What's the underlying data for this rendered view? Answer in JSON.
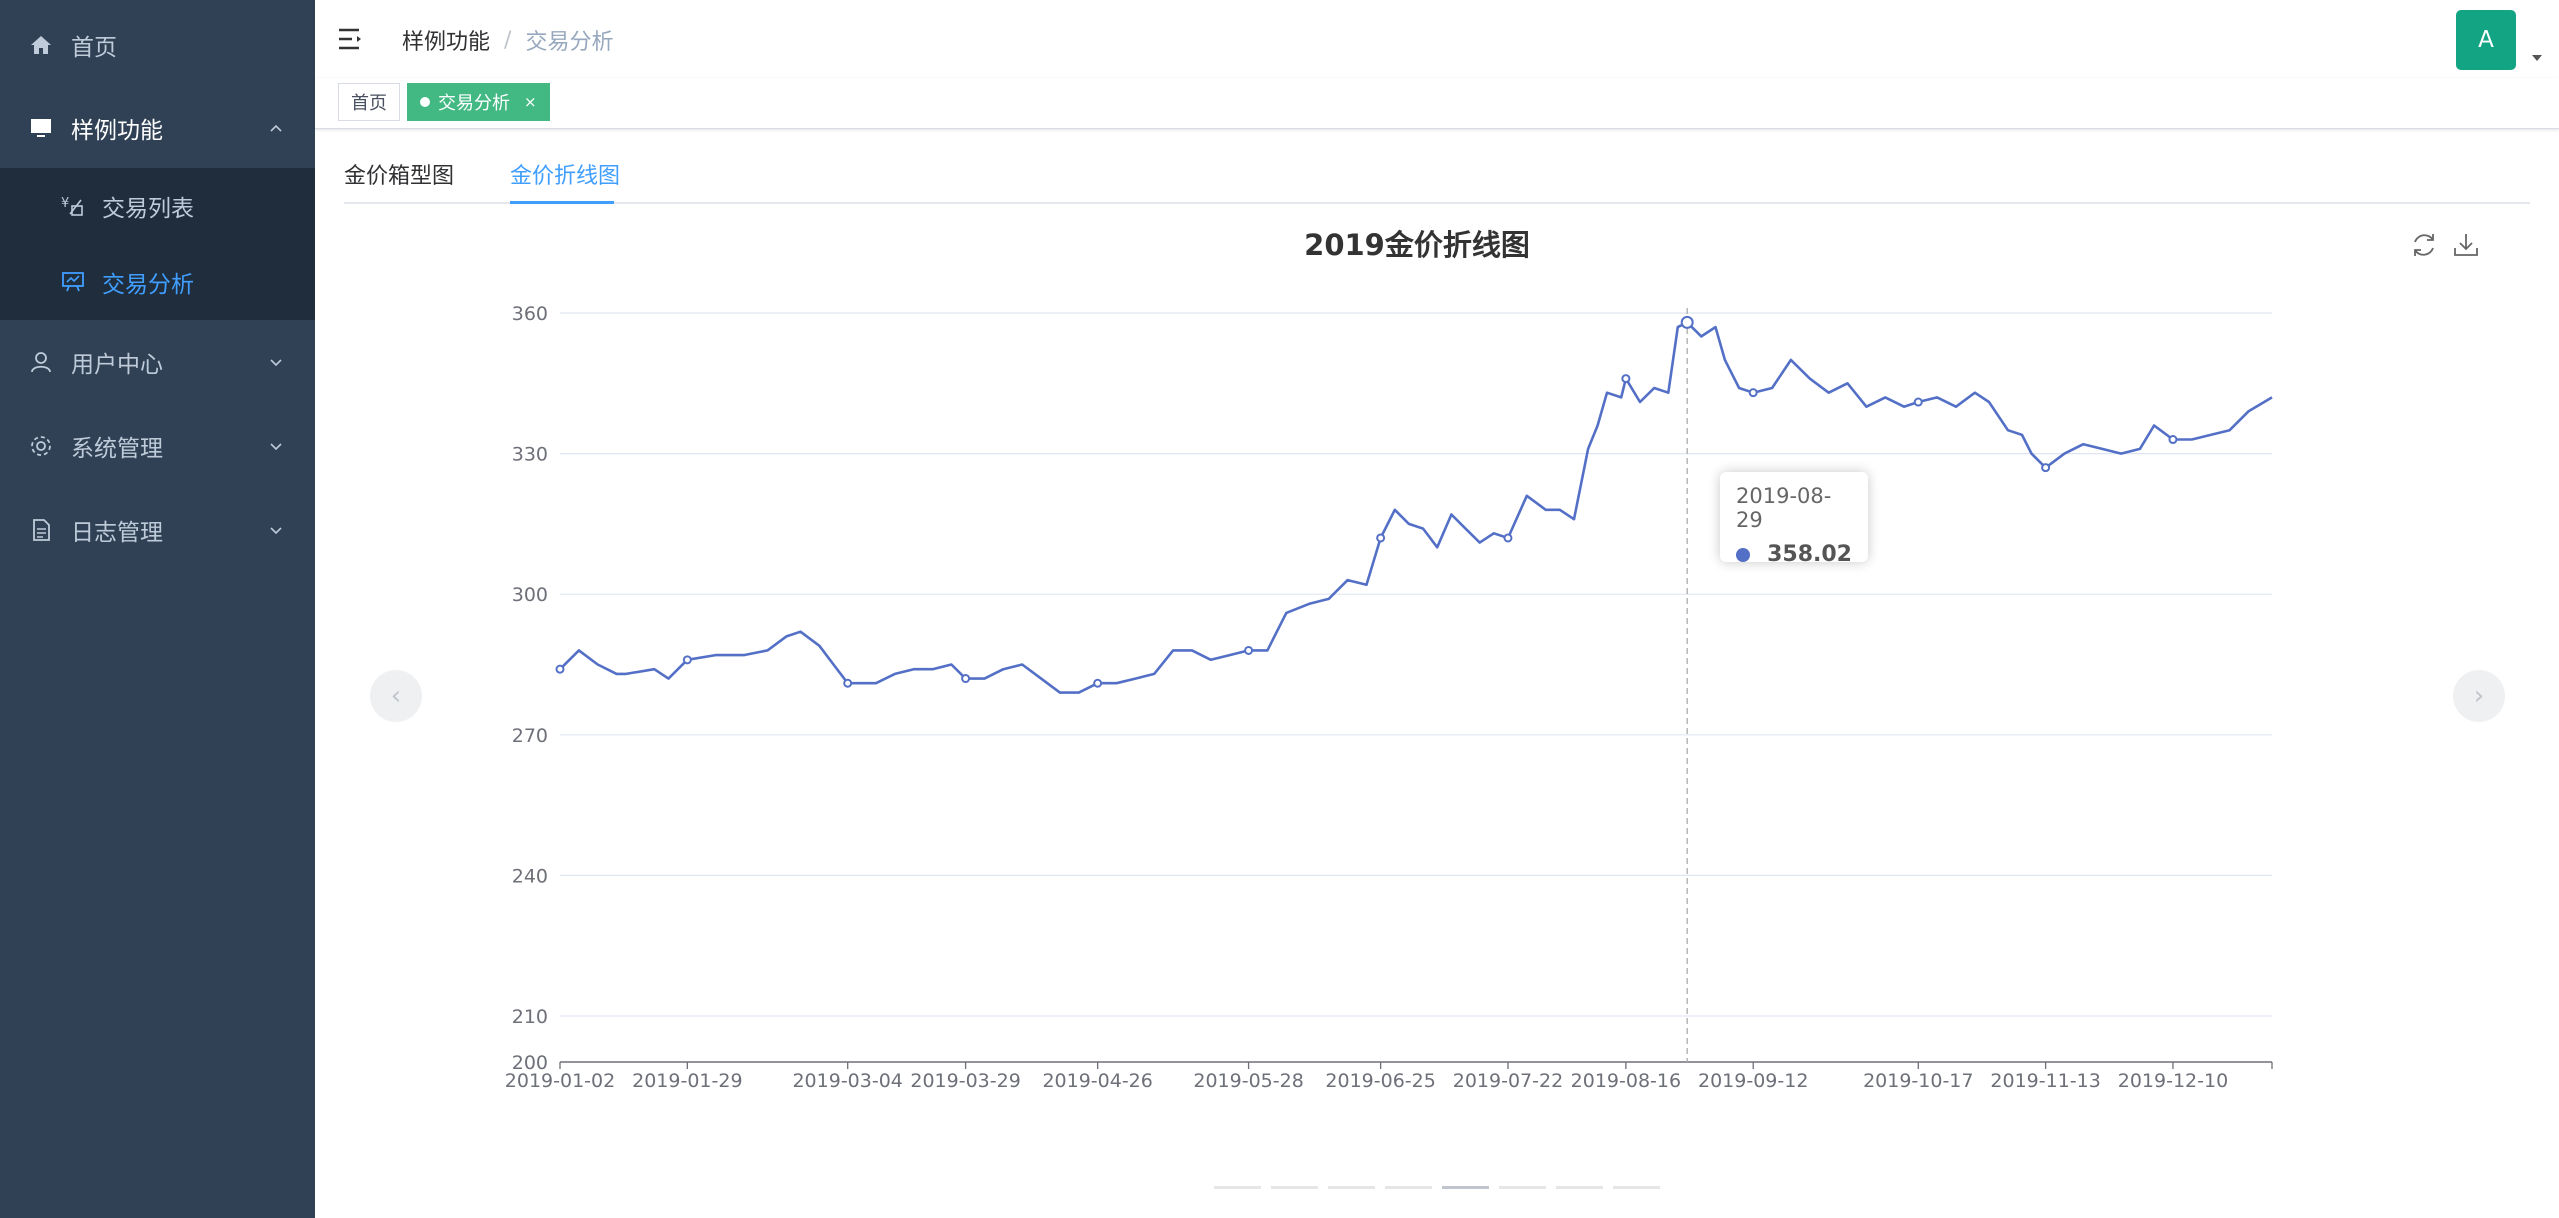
{
  "sidebar": {
    "items": [
      {
        "label": "首页",
        "icon": "home-icon"
      },
      {
        "label": "样例功能",
        "icon": "monitor-icon",
        "children": [
          {
            "label": "交易列表",
            "icon": "currency-list-icon"
          },
          {
            "label": "交易分析",
            "icon": "presentation-chart-icon"
          }
        ]
      },
      {
        "label": "用户中心",
        "icon": "user-icon"
      },
      {
        "label": "系统管理",
        "icon": "gear-icon"
      },
      {
        "label": "日志管理",
        "icon": "document-icon"
      }
    ]
  },
  "navbar": {
    "breadcrumb": [
      "样例功能",
      "交易分析"
    ],
    "avatar_letter": "A"
  },
  "tags": [
    "首页",
    "交易分析"
  ],
  "tags_close": "×",
  "tabs": [
    "金价箱型图",
    "金价折线图"
  ],
  "carousel": {
    "prev": "‹",
    "next": "›",
    "pages": 8,
    "active_page": 5
  },
  "chart_data": {
    "type": "line",
    "title": "2019金价折线图",
    "xlabel": "",
    "ylabel": "",
    "ylim": [
      200,
      360
    ],
    "yticks": [
      200,
      210,
      240,
      270,
      300,
      330,
      360
    ],
    "xticks": [
      "2019-01-02",
      "2019-01-29",
      "2019-03-04",
      "2019-03-29",
      "2019-04-26",
      "2019-05-28",
      "2019-06-25",
      "2019-07-22",
      "2019-08-16",
      "2019-09-12",
      "2019-10-17",
      "2019-11-13",
      "2019-12-10"
    ],
    "x_start": "2019-01-02",
    "x_end": "2019-12-31",
    "series": [
      {
        "name": "",
        "color": "#5470c6",
        "points": [
          [
            "2019-01-02",
            284
          ],
          [
            "2019-01-06",
            288
          ],
          [
            "2019-01-10",
            285
          ],
          [
            "2019-01-14",
            283
          ],
          [
            "2019-01-16",
            283
          ],
          [
            "2019-01-22",
            284
          ],
          [
            "2019-01-25",
            282
          ],
          [
            "2019-01-29",
            286
          ],
          [
            "2019-02-04",
            287
          ],
          [
            "2019-02-10",
            287
          ],
          [
            "2019-02-15",
            288
          ],
          [
            "2019-02-19",
            291
          ],
          [
            "2019-02-22",
            292
          ],
          [
            "2019-02-26",
            289
          ],
          [
            "2019-03-01",
            285
          ],
          [
            "2019-03-04",
            281
          ],
          [
            "2019-03-06",
            281
          ],
          [
            "2019-03-10",
            281
          ],
          [
            "2019-03-14",
            283
          ],
          [
            "2019-03-18",
            284
          ],
          [
            "2019-03-22",
            284
          ],
          [
            "2019-03-26",
            285
          ],
          [
            "2019-03-29",
            282
          ],
          [
            "2019-04-02",
            282
          ],
          [
            "2019-04-06",
            284
          ],
          [
            "2019-04-10",
            285
          ],
          [
            "2019-04-14",
            282
          ],
          [
            "2019-04-18",
            279
          ],
          [
            "2019-04-22",
            279
          ],
          [
            "2019-04-26",
            281
          ],
          [
            "2019-04-30",
            281
          ],
          [
            "2019-05-04",
            282
          ],
          [
            "2019-05-08",
            283
          ],
          [
            "2019-05-12",
            288
          ],
          [
            "2019-05-16",
            288
          ],
          [
            "2019-05-20",
            286
          ],
          [
            "2019-05-24",
            287
          ],
          [
            "2019-05-28",
            288
          ],
          [
            "2019-06-01",
            288
          ],
          [
            "2019-06-05",
            296
          ],
          [
            "2019-06-10",
            298
          ],
          [
            "2019-06-14",
            299
          ],
          [
            "2019-06-18",
            303
          ],
          [
            "2019-06-22",
            302
          ],
          [
            "2019-06-25",
            312
          ],
          [
            "2019-06-28",
            318
          ],
          [
            "2019-07-01",
            315
          ],
          [
            "2019-07-04",
            314
          ],
          [
            "2019-07-07",
            310
          ],
          [
            "2019-07-10",
            317
          ],
          [
            "2019-07-13",
            314
          ],
          [
            "2019-07-16",
            311
          ],
          [
            "2019-07-19",
            313
          ],
          [
            "2019-07-22",
            312
          ],
          [
            "2019-07-26",
            321
          ],
          [
            "2019-07-30",
            318
          ],
          [
            "2019-08-02",
            318
          ],
          [
            "2019-08-05",
            316
          ],
          [
            "2019-08-08",
            331
          ],
          [
            "2019-08-10",
            336
          ],
          [
            "2019-08-12",
            343
          ],
          [
            "2019-08-15",
            342
          ],
          [
            "2019-08-16",
            346
          ],
          [
            "2019-08-19",
            341
          ],
          [
            "2019-08-22",
            344
          ],
          [
            "2019-08-25",
            343
          ],
          [
            "2019-08-27",
            357
          ],
          [
            "2019-08-29",
            358
          ],
          [
            "2019-09-01",
            355
          ],
          [
            "2019-09-04",
            357
          ],
          [
            "2019-09-06",
            350
          ],
          [
            "2019-09-09",
            344
          ],
          [
            "2019-09-12",
            343
          ],
          [
            "2019-09-16",
            344
          ],
          [
            "2019-09-20",
            350
          ],
          [
            "2019-09-24",
            346
          ],
          [
            "2019-09-28",
            343
          ],
          [
            "2019-10-02",
            345
          ],
          [
            "2019-10-06",
            340
          ],
          [
            "2019-10-10",
            342
          ],
          [
            "2019-10-14",
            340
          ],
          [
            "2019-10-17",
            341
          ],
          [
            "2019-10-21",
            342
          ],
          [
            "2019-10-25",
            340
          ],
          [
            "2019-10-29",
            343
          ],
          [
            "2019-11-01",
            341
          ],
          [
            "2019-11-05",
            335
          ],
          [
            "2019-11-08",
            334
          ],
          [
            "2019-11-10",
            330
          ],
          [
            "2019-11-13",
            327
          ],
          [
            "2019-11-17",
            330
          ],
          [
            "2019-11-21",
            332
          ],
          [
            "2019-11-25",
            331
          ],
          [
            "2019-11-29",
            330
          ],
          [
            "2019-12-03",
            331
          ],
          [
            "2019-12-06",
            336
          ],
          [
            "2019-12-10",
            333
          ],
          [
            "2019-12-14",
            333
          ],
          [
            "2019-12-18",
            334
          ],
          [
            "2019-12-22",
            335
          ],
          [
            "2019-12-26",
            339
          ],
          [
            "2019-12-31",
            342
          ]
        ]
      }
    ],
    "marked_points": [
      "2019-01-02",
      "2019-01-29",
      "2019-03-04",
      "2019-03-29",
      "2019-04-26",
      "2019-05-28",
      "2019-06-25",
      "2019-07-22",
      "2019-08-16",
      "2019-08-29",
      "2019-09-12",
      "2019-10-17",
      "2019-11-13",
      "2019-12-10"
    ],
    "tooltip": {
      "date": "2019-08-29",
      "value": "358.02"
    }
  }
}
